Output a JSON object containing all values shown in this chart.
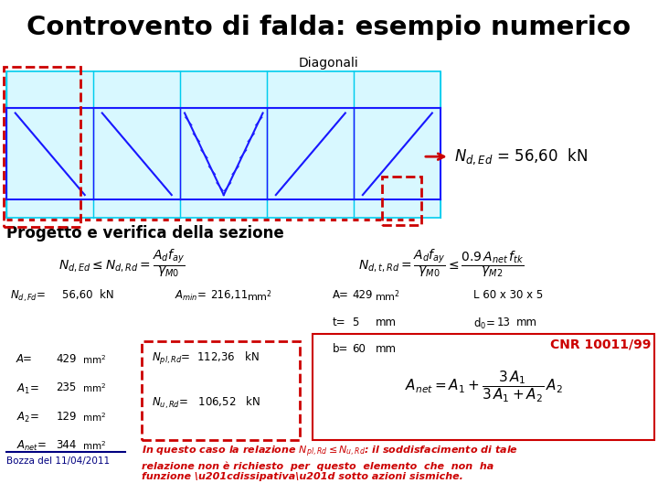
{
  "title": "Controvento di falda: esempio numerico",
  "subtitle": "Diagonali",
  "bg_color": "#ffffff",
  "title_color": "#000000",
  "section_header": "Progetto e verifica della sezione",
  "cnr_label": "CNR 10011/99",
  "bozza_label": "Bozza del 11/04/2011",
  "red_color": "#cc0000",
  "blue_color": "#1a1aff",
  "cyan_color": "#00ccee",
  "navy_color": "#2222aa",
  "dark_blue": "#000080"
}
